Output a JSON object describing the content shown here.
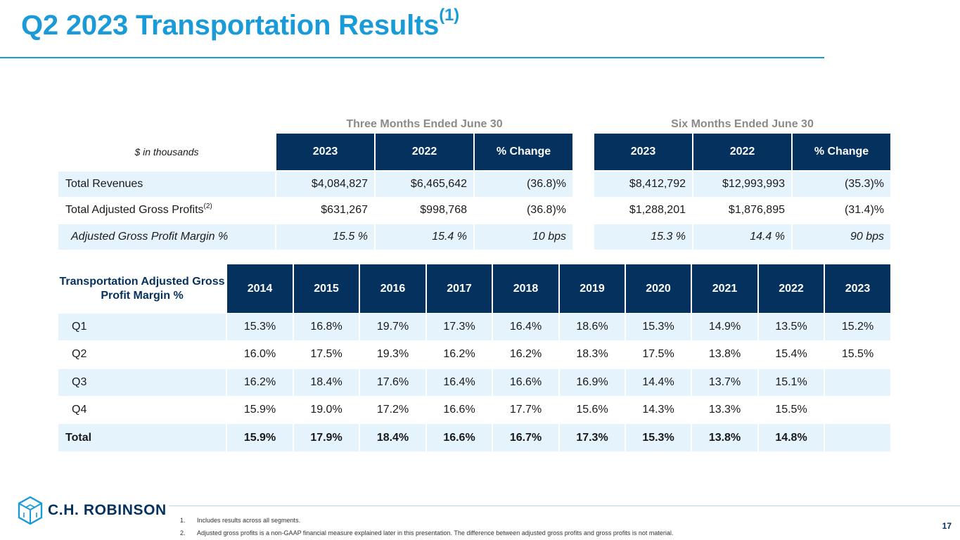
{
  "slide": {
    "title": "Q2 2023 Transportation Results",
    "title_note": "(1)",
    "page_number": "17"
  },
  "summary_table": {
    "unit_label": "$ in thousands",
    "period_three": "Three Months Ended June 30",
    "period_six": "Six Months Ended June 30",
    "headers": [
      "2023",
      "2022",
      "% Change",
      "2023",
      "2022",
      "% Change"
    ],
    "rows": [
      {
        "label": "Total Revenues",
        "note": "",
        "values": [
          "$4,084,827",
          "$6,465,642",
          "(36.8)%",
          "$8,412,792",
          "$12,993,993",
          "(35.3)%"
        ]
      },
      {
        "label": "Total Adjusted Gross Profits",
        "note": "(2)",
        "values": [
          "$631,267",
          "$998,768",
          "(36.8)%",
          "$1,288,201",
          "$1,876,895",
          "(31.4)%"
        ]
      },
      {
        "label": "Adjusted Gross Profit Margin %",
        "note": "",
        "values": [
          "15.5 %",
          "15.4 %",
          "10 bps",
          "15.3 %",
          "14.4 %",
          "90 bps"
        ]
      }
    ]
  },
  "margin_table": {
    "row_header": "Transportation Adjusted Gross Profit Margin %",
    "years": [
      "2014",
      "2015",
      "2016",
      "2017",
      "2018",
      "2019",
      "2020",
      "2021",
      "2022",
      "2023"
    ],
    "rows": [
      {
        "label": "Q1",
        "values": [
          "15.3%",
          "16.8%",
          "19.7%",
          "17.3%",
          "16.4%",
          "18.6%",
          "15.3%",
          "14.9%",
          "13.5%",
          "15.2%"
        ]
      },
      {
        "label": "Q2",
        "values": [
          "16.0%",
          "17.5%",
          "19.3%",
          "16.2%",
          "16.2%",
          "18.3%",
          "17.5%",
          "13.8%",
          "15.4%",
          "15.5%"
        ]
      },
      {
        "label": "Q3",
        "values": [
          "16.2%",
          "18.4%",
          "17.6%",
          "16.4%",
          "16.6%",
          "16.9%",
          "14.4%",
          "13.7%",
          "15.1%",
          ""
        ]
      },
      {
        "label": "Q4",
        "values": [
          "15.9%",
          "19.0%",
          "17.2%",
          "16.6%",
          "17.7%",
          "15.6%",
          "14.3%",
          "13.3%",
          "15.5%",
          ""
        ]
      },
      {
        "label": "Total",
        "values": [
          "15.9%",
          "17.9%",
          "18.4%",
          "16.6%",
          "16.7%",
          "17.3%",
          "15.3%",
          "13.8%",
          "14.8%",
          ""
        ]
      }
    ]
  },
  "footnotes": [
    {
      "num": "1.",
      "text": "Includes results across all segments."
    },
    {
      "num": "2.",
      "text": "Adjusted gross profits is a non-GAAP financial measure explained later in this presentation. The difference between adjusted gross profits and gross profits is not material."
    }
  ],
  "brand": {
    "name": "C.H. ROBINSON",
    "logo_icon": "cube-icon",
    "colors": {
      "accent": "#1a9bd7",
      "navy": "#05315e",
      "row_light": "#e4f3fc"
    }
  }
}
